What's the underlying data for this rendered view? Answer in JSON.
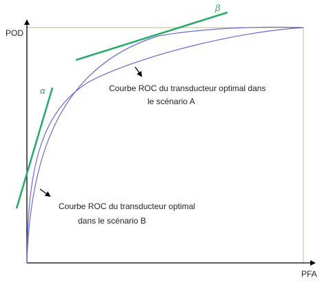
{
  "axes": {
    "y_label": "POD",
    "x_label": "PFA"
  },
  "tangents": {
    "alpha": "α",
    "beta": "β"
  },
  "annotations": [
    {
      "lines": [
        "Courbe ROC du transducteur optimal dans",
        "le scénario A"
      ]
    },
    {
      "lines": [
        "Courbe ROC du transducteur optimal",
        "dans le scénario B"
      ]
    }
  ]
}
